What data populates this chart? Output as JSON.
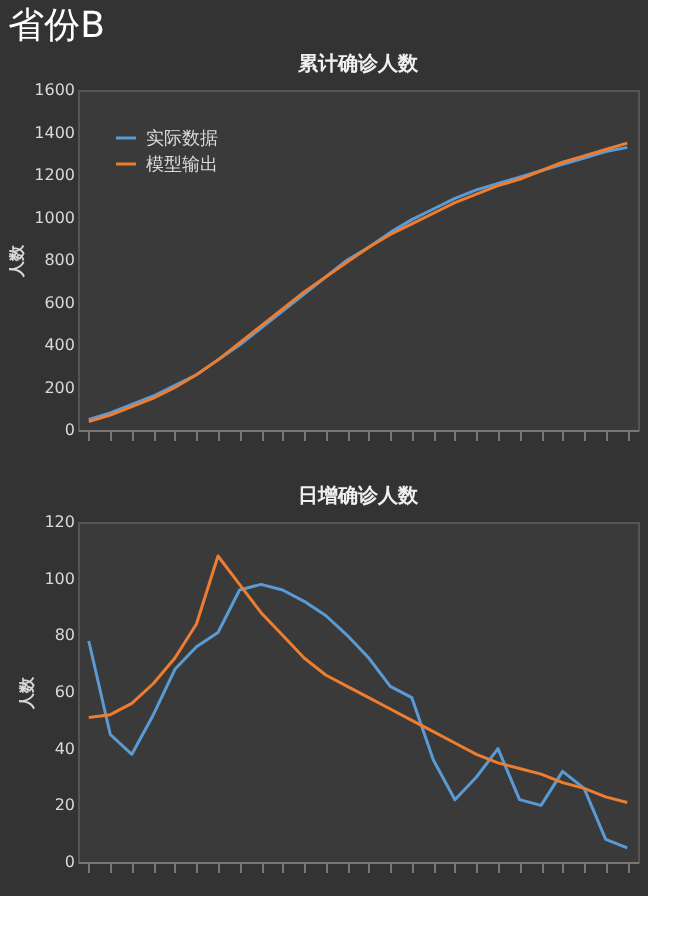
{
  "chart_data": [
    {
      "type": "line",
      "title": "累计确诊人数",
      "annotations": [
        "省份B"
      ],
      "ylabel": "人数",
      "categories": [
        null,
        null,
        null,
        null,
        null,
        null,
        null,
        null,
        null,
        null,
        null,
        null,
        null,
        null,
        null,
        null,
        null,
        null,
        null,
        null,
        null,
        null,
        null,
        null,
        null,
        null
      ],
      "ylim": [
        0,
        1600
      ],
      "yticks": [
        0,
        200,
        400,
        600,
        800,
        1000,
        1200,
        1400,
        1600
      ],
      "grid": false,
      "legend": "top left",
      "line_style": "solid",
      "marker": "none",
      "series": [
        {
          "name": "实际数据",
          "color": "#5b9bd5",
          "values": [
            50,
            80,
            120,
            160,
            210,
            260,
            330,
            400,
            480,
            560,
            640,
            720,
            800,
            860,
            930,
            990,
            1040,
            1090,
            1130,
            1160,
            1190,
            1220,
            1250,
            1280,
            1310,
            1330
          ]
        },
        {
          "name": "模型输出",
          "color": "#ed7d31",
          "values": [
            40,
            70,
            110,
            150,
            200,
            260,
            330,
            410,
            490,
            570,
            650,
            720,
            790,
            860,
            920,
            970,
            1020,
            1070,
            1110,
            1150,
            1180,
            1220,
            1260,
            1290,
            1320,
            1350
          ]
        }
      ]
    },
    {
      "type": "line",
      "title": "日增确诊人数",
      "ylabel": "人数",
      "categories": [
        null,
        null,
        null,
        null,
        null,
        null,
        null,
        null,
        null,
        null,
        null,
        null,
        null,
        null,
        null,
        null,
        null,
        null,
        null,
        null,
        null,
        null,
        null,
        null,
        null,
        null
      ],
      "ylim": [
        0,
        120
      ],
      "yticks": [
        0,
        20,
        40,
        60,
        80,
        100,
        120
      ],
      "grid": false,
      "legend": "top left",
      "line_style": "solid",
      "marker": "none",
      "series": [
        {
          "name": "实际数据",
          "color": "#5b9bd5",
          "values": [
            78,
            45,
            38,
            52,
            68,
            76,
            81,
            96,
            98,
            96,
            92,
            87,
            80,
            72,
            62,
            58,
            36,
            22,
            30,
            40,
            22,
            20,
            32,
            26,
            8,
            5
          ]
        },
        {
          "name": "模型输出",
          "color": "#ed7d31",
          "values": [
            51,
            52,
            56,
            63,
            72,
            84,
            108,
            98,
            88,
            80,
            72,
            66,
            62,
            58,
            54,
            50,
            46,
            42,
            38,
            35,
            33,
            31,
            28,
            26,
            23,
            21
          ]
        }
      ]
    }
  ]
}
